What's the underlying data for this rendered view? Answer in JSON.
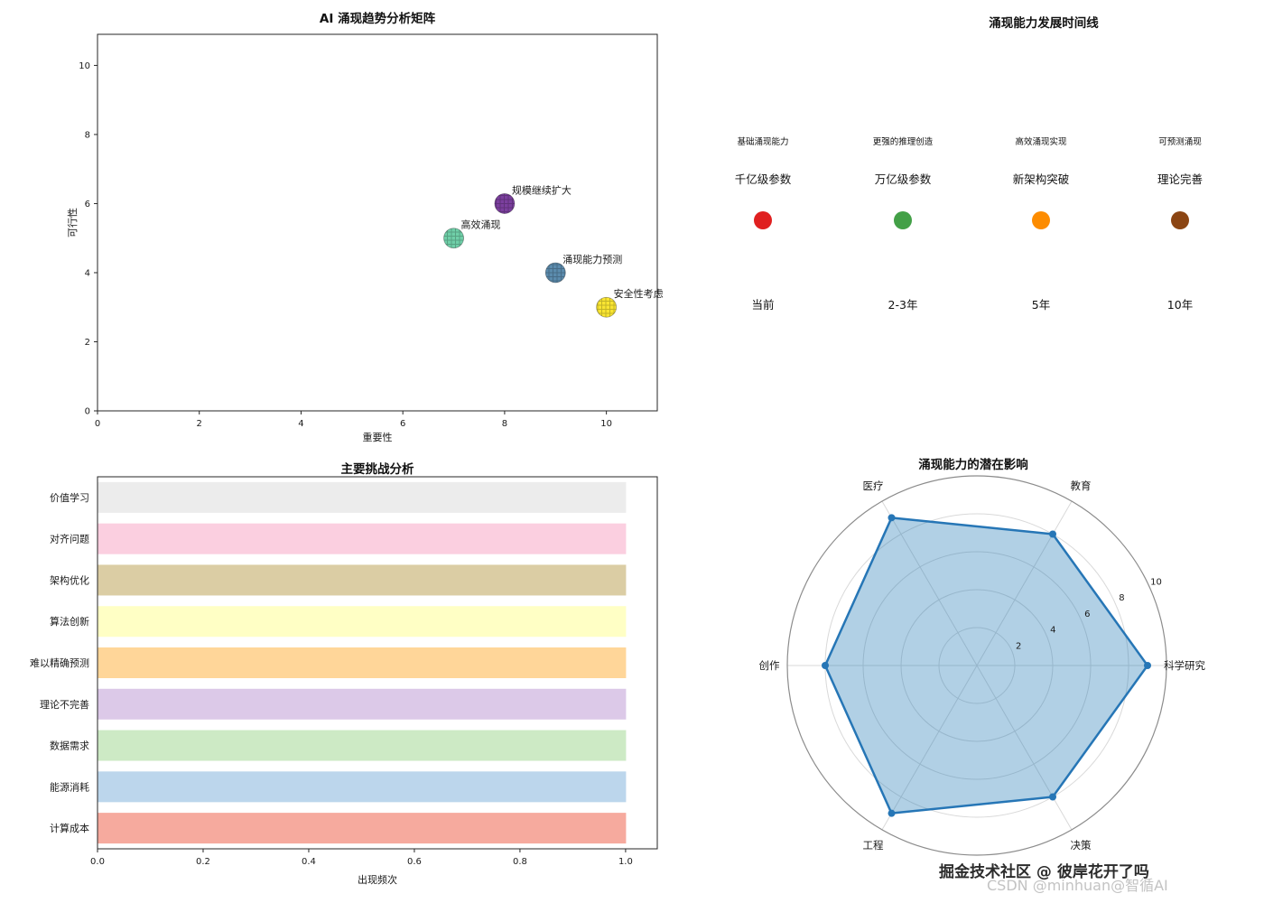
{
  "watermark": {
    "line1": "掘金技术社区 @ 彼岸花开了吗",
    "line2": "CSDN @minhuan@智循AI"
  },
  "chart_data": [
    {
      "id": "trend_matrix",
      "type": "scatter",
      "title": "AI 涌现趋势分析矩阵",
      "xlabel": "重要性",
      "ylabel": "可行性",
      "xlim": [
        0,
        11
      ],
      "ylim": [
        0,
        10.9
      ],
      "xticks": [
        0,
        2,
        4,
        6,
        8,
        10
      ],
      "yticks": [
        0,
        2,
        4,
        6,
        8,
        10
      ],
      "points": [
        {
          "label": "规模继续扩大",
          "x": 8,
          "y": 6,
          "color": "#7b3f9e"
        },
        {
          "label": "高效涌现",
          "x": 7,
          "y": 5,
          "color": "#6fcfa8"
        },
        {
          "label": "涌现能力预测",
          "x": 9,
          "y": 4,
          "color": "#5b8bad"
        },
        {
          "label": "安全性考虑",
          "x": 10,
          "y": 3,
          "color": "#f9e532"
        }
      ]
    },
    {
      "id": "timeline",
      "type": "timeline",
      "title": "涌现能力发展时间线",
      "milestones": [
        {
          "capability": "基础涌现能力",
          "scale": "千亿级参数",
          "time": "当前",
          "color": "#e02020"
        },
        {
          "capability": "更强的推理创造",
          "scale": "万亿级参数",
          "time": "2-3年",
          "color": "#43a047"
        },
        {
          "capability": "高效涌现实现",
          "scale": "新架构突破",
          "time": "5年",
          "color": "#fd8c00"
        },
        {
          "capability": "可预测涌现",
          "scale": "理论完善",
          "time": "10年",
          "color": "#8b4513"
        }
      ]
    },
    {
      "id": "challenges",
      "type": "bar",
      "title": "主要挑战分析",
      "xlabel": "出现频次",
      "xlim": [
        0,
        1.06
      ],
      "xticks": [
        0.0,
        0.2,
        0.4,
        0.6,
        0.8,
        1.0
      ],
      "categories": [
        "价值学习",
        "对齐问题",
        "架构优化",
        "算法创新",
        "难以精确预测",
        "理论不完善",
        "数据需求",
        "能源消耗",
        "计算成本"
      ],
      "values": [
        1.0,
        1.0,
        1.0,
        1.0,
        1.0,
        1.0,
        1.0,
        1.0,
        1.0
      ],
      "colors": [
        "#ececec",
        "#fbcfe0",
        "#dbcda4",
        "#ffffc5",
        "#ffd699",
        "#dcc9e8",
        "#cdeac5",
        "#bcd6ec",
        "#f6aa9e"
      ]
    },
    {
      "id": "impact_radar",
      "type": "radar",
      "title": "涌现能力的潜在影响",
      "axes": [
        "科学研究",
        "教育",
        "医疗",
        "创作",
        "工程",
        "决策"
      ],
      "values": [
        9,
        8,
        9,
        8,
        9,
        8
      ],
      "rticks": [
        2,
        4,
        6,
        8,
        10
      ],
      "rlim": [
        0,
        10
      ],
      "stroke": "#2676b6",
      "fill": "#1f77b4"
    }
  ]
}
